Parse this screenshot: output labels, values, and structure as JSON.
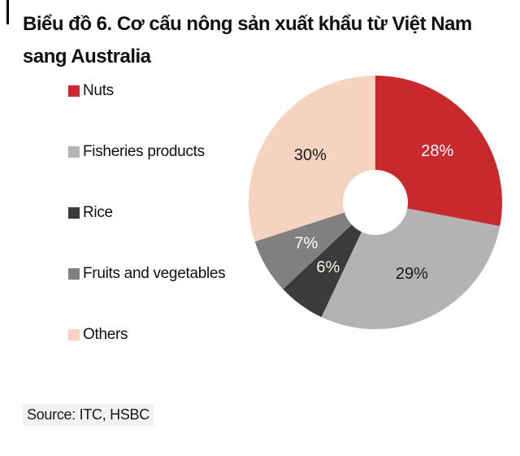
{
  "page": {
    "title": "Biểu đồ 6. Cơ cấu nông sản xuất khẩu từ Việt Nam sang Australia",
    "source_note": "Source: ITC, HSBC"
  },
  "chart_data": {
    "type": "pie",
    "subtype": "donut",
    "title": "Biểu đồ 6. Cơ cấu nông sản xuất khẩu từ Việt Nam sang Australia",
    "categories": [
      "Nuts",
      "Fisheries products",
      "Rice",
      "Fruits and vegetables",
      "Others"
    ],
    "values": [
      28,
      29,
      6,
      7,
      30
    ],
    "data_labels": [
      "28%",
      "29%",
      "6%",
      "7%",
      "30%"
    ],
    "colors": [
      "#c9282c",
      "#b3b3b3",
      "#3b3b3b",
      "#808080",
      "#f5d3c0"
    ],
    "data_label_colors": [
      "#ffffff",
      "#1a1a1a",
      "#f9f1e6",
      "#ffffff",
      "#1a1a1a"
    ],
    "legend_position": "left",
    "start_angle_deg": 0,
    "direction": "clockwise",
    "source": "Source: ITC, HSBC"
  }
}
